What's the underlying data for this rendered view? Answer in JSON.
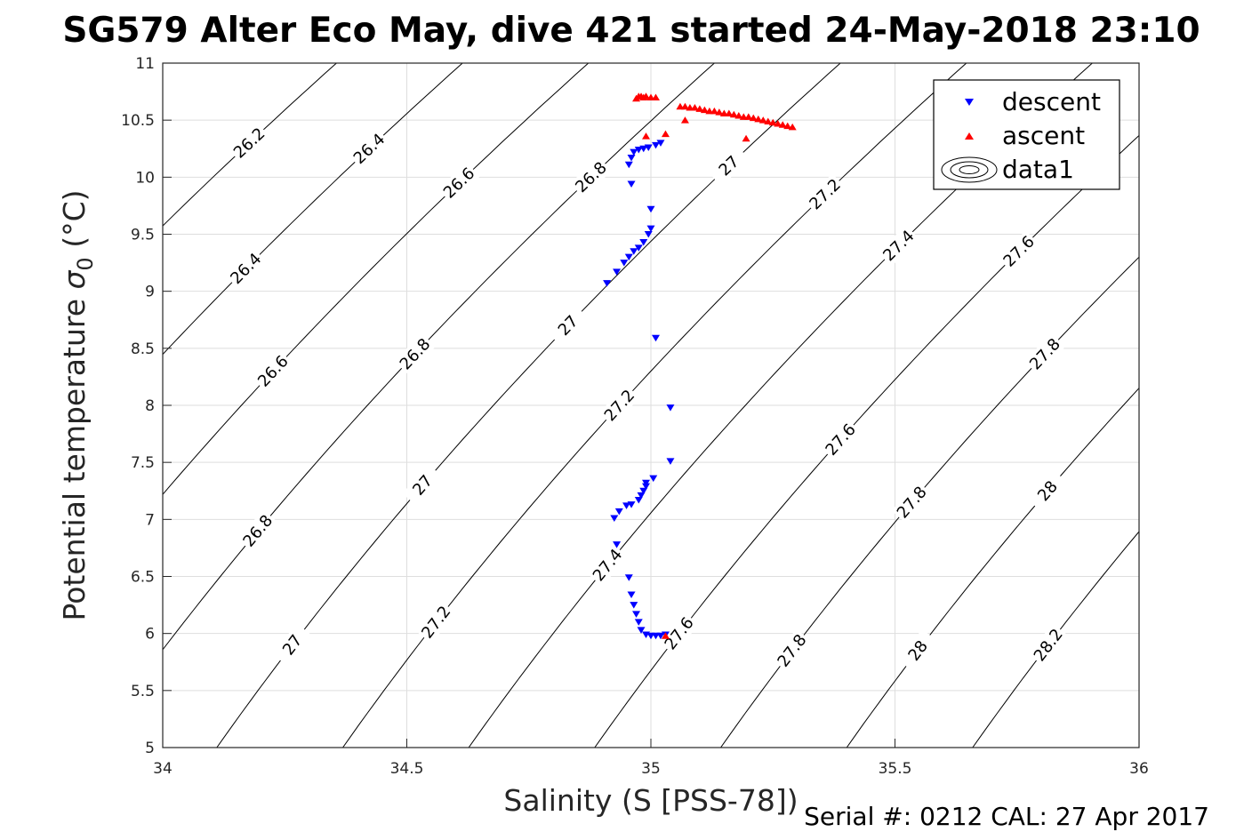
{
  "chart_data": {
    "type": "scatter",
    "title": "SG579 Alter Eco May, dive 421 started 24-May-2018 23:10",
    "xlabel": "Salinity (S [PSS-78])",
    "ylabel_main": "Potential temperature ",
    "ylabel_sigma": "σ",
    "ylabel_sub": "0",
    "ylabel_unit": " (°C)",
    "footer": "Serial #: 0212  CAL: 27 Apr 2017",
    "xlim": [
      34,
      36
    ],
    "ylim": [
      5,
      11
    ],
    "x_ticks": [
      34,
      34.5,
      35,
      35.5,
      36
    ],
    "x_tick_labels": [
      "34",
      "34.5",
      "35",
      "35.5",
      "36"
    ],
    "y_ticks": [
      5,
      5.5,
      6,
      6.5,
      7,
      7.5,
      8,
      8.5,
      9,
      9.5,
      10,
      10.5,
      11
    ],
    "y_tick_labels": [
      "5",
      "5.5",
      "6",
      "6.5",
      "7",
      "7.5",
      "8",
      "8.5",
      "9",
      "9.5",
      "10",
      "10.5",
      "11"
    ],
    "grid": true,
    "legend_position": "top-right",
    "legend": [
      "descent",
      "ascent",
      "data1"
    ],
    "colors": {
      "descent": "#0000ff",
      "ascent": "#ff0000",
      "contour": "#000000",
      "grid": "#dedede"
    },
    "contours": [
      {
        "level": 26.2,
        "labels": [
          "26.2"
        ]
      },
      {
        "level": 26.4,
        "labels": [
          "26.4",
          "26.4"
        ]
      },
      {
        "level": 26.6,
        "labels": [
          "26.6",
          "26.6"
        ]
      },
      {
        "level": 26.8,
        "labels": [
          "26.8",
          "26.8",
          "26.8"
        ]
      },
      {
        "level": 27.0,
        "labels": [
          "27",
          "27",
          "27",
          "27"
        ]
      },
      {
        "level": 27.2,
        "labels": [
          "27.2",
          "27.2",
          "27.2"
        ]
      },
      {
        "level": 27.4,
        "labels": [
          "27.4",
          "27.4"
        ]
      },
      {
        "level": 27.6,
        "labels": [
          "27.6",
          "27.6",
          "27.6"
        ]
      },
      {
        "level": 27.8,
        "labels": [
          "27.8",
          "27.8",
          "27.8"
        ]
      },
      {
        "level": 28.0,
        "labels": [
          "28",
          "28"
        ]
      },
      {
        "level": 28.2,
        "labels": [
          "28.2"
        ]
      }
    ],
    "series": [
      {
        "name": "descent",
        "marker": "triangle-down",
        "points": [
          [
            35.03,
            5.99
          ],
          [
            35.02,
            5.98
          ],
          [
            35.01,
            5.98
          ],
          [
            35.0,
            5.98
          ],
          [
            34.99,
            5.99
          ],
          [
            34.98,
            6.03
          ],
          [
            34.975,
            6.1
          ],
          [
            34.97,
            6.17
          ],
          [
            34.965,
            6.25
          ],
          [
            34.96,
            6.34
          ],
          [
            34.955,
            6.49
          ],
          [
            34.93,
            6.78
          ],
          [
            34.925,
            7.01
          ],
          [
            34.935,
            7.07
          ],
          [
            34.95,
            7.12
          ],
          [
            34.96,
            7.13
          ],
          [
            34.975,
            7.17
          ],
          [
            34.98,
            7.21
          ],
          [
            34.985,
            7.25
          ],
          [
            34.99,
            7.29
          ],
          [
            34.99,
            7.32
          ],
          [
            35.005,
            7.36
          ],
          [
            35.04,
            7.51
          ],
          [
            35.04,
            7.98
          ],
          [
            35.01,
            8.59
          ],
          [
            34.91,
            9.07
          ],
          [
            34.93,
            9.17
          ],
          [
            34.945,
            9.25
          ],
          [
            34.955,
            9.3
          ],
          [
            34.965,
            9.35
          ],
          [
            34.975,
            9.38
          ],
          [
            34.985,
            9.43
          ],
          [
            34.995,
            9.5
          ],
          [
            35.0,
            9.55
          ],
          [
            35.0,
            9.72
          ],
          [
            34.96,
            9.94
          ],
          [
            34.955,
            10.11
          ],
          [
            34.96,
            10.17
          ],
          [
            34.965,
            10.22
          ],
          [
            34.975,
            10.24
          ],
          [
            34.985,
            10.25
          ],
          [
            34.995,
            10.26
          ],
          [
            35.01,
            10.28
          ],
          [
            35.02,
            10.3
          ]
        ]
      },
      {
        "name": "ascent",
        "marker": "triangle-up",
        "points": [
          [
            35.03,
            5.98
          ],
          [
            34.99,
            10.36
          ],
          [
            35.03,
            10.38
          ],
          [
            35.07,
            10.5
          ],
          [
            35.195,
            10.34
          ],
          [
            34.97,
            10.69
          ],
          [
            34.975,
            10.71
          ],
          [
            34.98,
            10.71
          ],
          [
            34.985,
            10.7
          ],
          [
            34.99,
            10.71
          ],
          [
            35.0,
            10.7
          ],
          [
            35.01,
            10.7
          ],
          [
            35.06,
            10.62
          ],
          [
            35.07,
            10.62
          ],
          [
            35.08,
            10.61
          ],
          [
            35.09,
            10.61
          ],
          [
            35.1,
            10.6
          ],
          [
            35.11,
            10.59
          ],
          [
            35.12,
            10.58
          ],
          [
            35.13,
            10.58
          ],
          [
            35.14,
            10.57
          ],
          [
            35.15,
            10.56
          ],
          [
            35.16,
            10.56
          ],
          [
            35.17,
            10.55
          ],
          [
            35.18,
            10.54
          ],
          [
            35.19,
            10.53
          ],
          [
            35.2,
            10.53
          ],
          [
            35.21,
            10.52
          ],
          [
            35.22,
            10.51
          ],
          [
            35.23,
            10.5
          ],
          [
            35.24,
            10.49
          ],
          [
            35.25,
            10.48
          ],
          [
            35.26,
            10.47
          ],
          [
            35.27,
            10.46
          ],
          [
            35.28,
            10.45
          ],
          [
            35.29,
            10.44
          ]
        ]
      }
    ]
  }
}
